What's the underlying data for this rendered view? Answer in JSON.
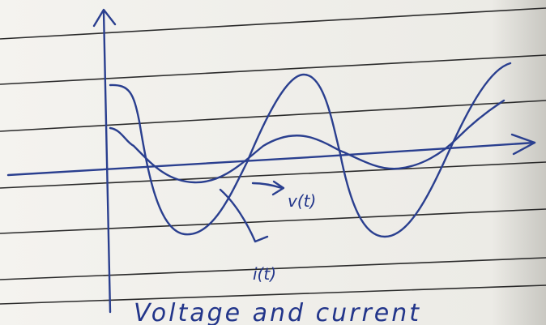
{
  "labels": {
    "voltage": "v(t)",
    "current": "i(t)"
  },
  "caption": "Voltage and current"
}
